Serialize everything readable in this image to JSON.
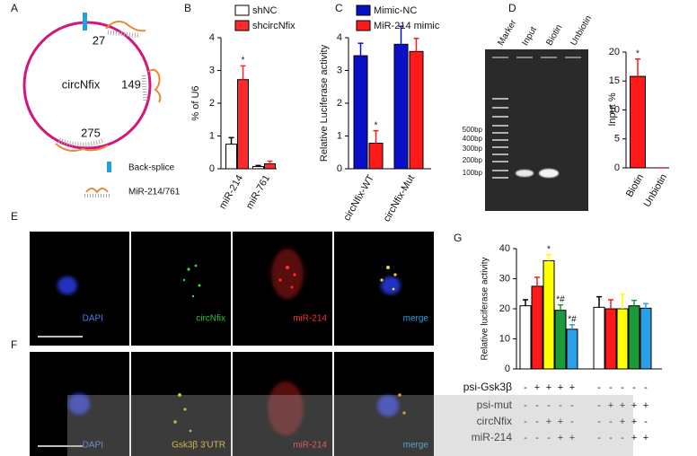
{
  "panel_labels": [
    "A",
    "B",
    "C",
    "D",
    "E",
    "F",
    "G"
  ],
  "diagram": {
    "center_label": "circNfix",
    "sites": [
      "27",
      "149",
      "275"
    ],
    "legend": [
      "Back-splice",
      "MiR-214/761"
    ]
  },
  "gel": {
    "lanes": [
      "Marker",
      "Input",
      "Biotin",
      "Unbiotin"
    ],
    "sizes": [
      "500bp",
      "400bp",
      "300bp",
      "200bp",
      "100bp"
    ]
  },
  "images": {
    "rows": [
      [
        "DAPI",
        "circNfix",
        "miR-214",
        "merge"
      ],
      [
        "DAPI",
        "Gsk3β 3'UTR",
        "miR-214",
        "merge"
      ]
    ]
  },
  "table_g": {
    "rows": [
      {
        "label": "psi-Gsk3β",
        "cells": [
          "-",
          "+",
          "+",
          "+",
          "+",
          "-",
          "-",
          "-",
          "-",
          "-"
        ]
      },
      {
        "label": "psi-mut",
        "cells": [
          "-",
          "-",
          "-",
          "-",
          "-",
          "-",
          "+",
          "+",
          "+",
          "+"
        ]
      },
      {
        "label": "circNfix",
        "cells": [
          "-",
          "-",
          "+",
          "+",
          "-",
          "-",
          "-",
          "+",
          "+",
          "-"
        ]
      },
      {
        "label": "miR-214",
        "cells": [
          "-",
          "-",
          "-",
          "+",
          "+",
          "-",
          "-",
          "-",
          "+",
          "+"
        ]
      }
    ]
  },
  "chart_data": [
    {
      "type": "bar",
      "y_label": "% of U6",
      "categories": [
        "miR-214",
        "miR-761"
      ],
      "series": [
        {
          "name": "shNC",
          "color": "#ffffff",
          "values": [
            0.75,
            0.07
          ],
          "errors": [
            0.2,
            0.03
          ],
          "significance": [
            null,
            null
          ]
        },
        {
          "name": "shcircNfix",
          "color": "#ff2a2a",
          "values": [
            2.72,
            0.15
          ],
          "errors": [
            0.42,
            0.08
          ],
          "significance": [
            "*",
            null
          ]
        }
      ],
      "ylim": [
        0,
        4
      ],
      "yticks": [
        0,
        1,
        2,
        3,
        4
      ]
    },
    {
      "type": "bar",
      "y_label": "Relative Luciferase activity",
      "categories": [
        "circNfix-WT",
        "circNfix-Mut"
      ],
      "series": [
        {
          "name": "Mimic-NC",
          "color": "#0a10c8",
          "values": [
            3.45,
            3.8
          ],
          "errors": [
            0.38,
            0.55
          ],
          "significance": [
            null,
            null
          ]
        },
        {
          "name": "MiR-214 mimic",
          "color": "#ff1a1a",
          "values": [
            0.78,
            3.58
          ],
          "errors": [
            0.38,
            0.4
          ],
          "significance": [
            "*",
            null
          ]
        }
      ],
      "ylim": [
        0,
        4
      ],
      "yticks": [
        0,
        1,
        2,
        3,
        4
      ]
    },
    {
      "type": "bar",
      "y_label": "Input %",
      "categories": [
        "Biotin",
        "Unbiotin"
      ],
      "values": [
        15.8,
        0
      ],
      "errors": [
        3,
        0
      ],
      "significance": [
        "*",
        null
      ],
      "color": "#ff1a1a",
      "ylim": [
        0,
        20
      ],
      "yticks": [
        0,
        5,
        10,
        15,
        20
      ]
    },
    {
      "type": "bar",
      "y_label": "Relative luciferase activity",
      "categories": [
        null,
        null,
        null,
        null,
        null,
        null,
        null,
        null,
        null,
        null
      ],
      "values": [
        21,
        27.5,
        36,
        19.5,
        13.2,
        20.5,
        20,
        20,
        21,
        20.2
      ],
      "errors": [
        2,
        3,
        2,
        1.8,
        1.5,
        3.5,
        3,
        4.8,
        1.8,
        1.5
      ],
      "significance": [
        null,
        null,
        "*",
        "*#",
        "*#",
        null,
        null,
        null,
        null,
        null
      ],
      "colors": [
        "#ffffff",
        "#ff1a1a",
        "#ffff00",
        "#1a9a3a",
        "#2aa0e8",
        "#ffffff",
        "#ff1a1a",
        "#ffff00",
        "#1a9a3a",
        "#2aa0e8"
      ],
      "ylim": [
        0,
        40
      ],
      "yticks": [
        0,
        10,
        20,
        30,
        40
      ]
    }
  ]
}
